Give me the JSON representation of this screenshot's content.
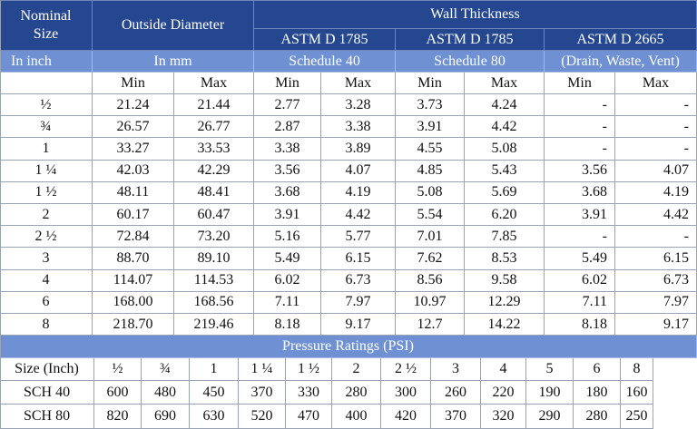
{
  "header": {
    "nominal_size_line1": "Nominal",
    "nominal_size_line2": "Size",
    "outside_diameter": "Outside Diameter",
    "wall_thickness": "Wall Thickness",
    "std1": "ASTM D 1785",
    "std2": "ASTM D 1785",
    "std3": "ASTM D 2665",
    "unit_inch": "In inch",
    "unit_mm": "In mm",
    "sched40": "Schedule 40",
    "sched80": "Schedule 80",
    "dwv": "(Drain, Waste, Vent)"
  },
  "minmax": [
    "Min",
    "Max",
    "Min",
    "Max",
    "Min",
    "Max",
    "Min",
    "Max"
  ],
  "rows": [
    [
      "½",
      "21.24",
      "21.44",
      "2.77",
      "3.28",
      "3.73",
      "4.24",
      "-",
      "-"
    ],
    [
      "¾",
      "26.57",
      "26.77",
      "2.87",
      "3.38",
      "3.91",
      "4.42",
      "-",
      "-"
    ],
    [
      "1",
      "33.27",
      "33.53",
      "3.38",
      "3.89",
      "4.55",
      "5.08",
      "-",
      "-"
    ],
    [
      "1 ¼",
      "42.03",
      "42.29",
      "3.56",
      "4.07",
      "4.85",
      "5.43",
      "3.56",
      "4.07"
    ],
    [
      "1 ½",
      "48.11",
      "48.41",
      "3.68",
      "4.19",
      "5.08",
      "5.69",
      "3.68",
      "4.19"
    ],
    [
      "2",
      "60.17",
      "60.47",
      "3.91",
      "4.42",
      "5.54",
      "6.20",
      "3.91",
      "4.42"
    ],
    [
      "2 ½",
      "72.84",
      "73.20",
      "5.16",
      "5.77",
      "7.01",
      "7.85",
      "-",
      "-"
    ],
    [
      "3",
      "88.70",
      "89.10",
      "5.49",
      "6.15",
      "7.62",
      "8.53",
      "5.49",
      "6.15"
    ],
    [
      "4",
      "114.07",
      "114.53",
      "6.02",
      "6.73",
      "8.56",
      "9.58",
      "6.02",
      "6.73"
    ],
    [
      "6",
      "168.00",
      "168.56",
      "7.11",
      "7.97",
      "10.97",
      "12.29",
      "7.11",
      "7.97"
    ],
    [
      "8",
      "218.70",
      "219.46",
      "8.18",
      "9.17",
      "12.7",
      "14.22",
      "8.18",
      "9.17"
    ]
  ],
  "pressure": {
    "title": "Pressure Ratings (PSI)",
    "size_label": "Size (Inch)",
    "sizes": [
      "½",
      "¾",
      "1",
      "1 ¼",
      "1 ½",
      "2",
      "2  ½",
      "3",
      "4",
      "5",
      "6",
      "8"
    ],
    "rows": [
      {
        "label": "SCH 40",
        "values": [
          "600",
          "480",
          "450",
          "370",
          "330",
          "280",
          "300",
          "260",
          "220",
          "190",
          "180",
          "160"
        ]
      },
      {
        "label": "SCH 80",
        "values": [
          "820",
          "690",
          "630",
          "520",
          "470",
          "400",
          "420",
          "370",
          "320",
          "290",
          "280",
          "250"
        ]
      }
    ]
  },
  "colors": {
    "header_dark": "#25478f",
    "header_light": "#6f91d3",
    "grid_line": "#9aa3b3"
  }
}
